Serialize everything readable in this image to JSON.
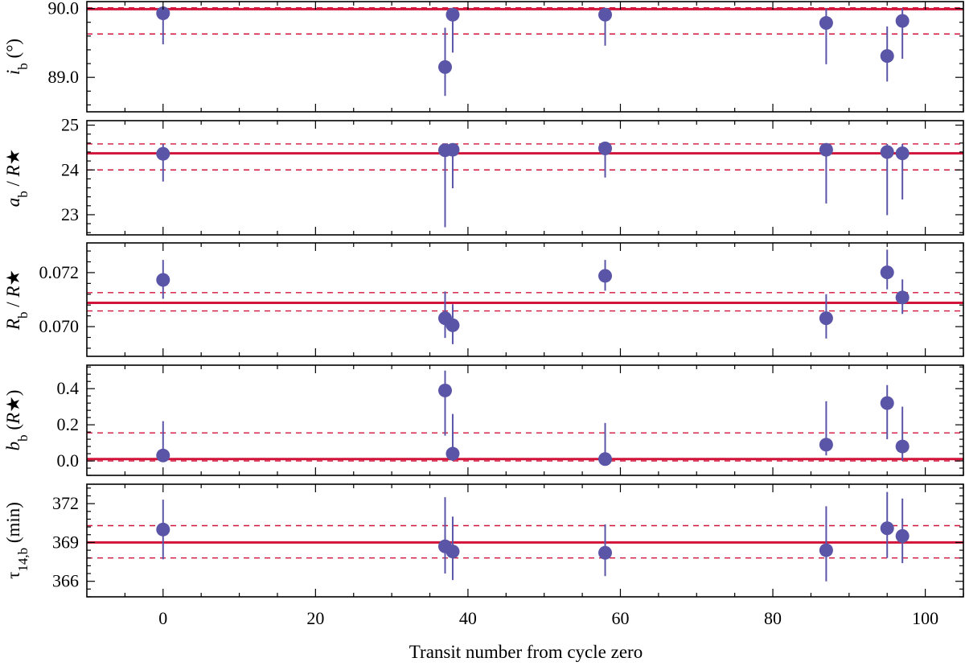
{
  "chart_data": {
    "type": "scatter",
    "xlabel": "Transit number from cycle zero",
    "xlim": [
      -10,
      105
    ],
    "xticks": [
      0,
      20,
      40,
      60,
      80,
      100
    ],
    "x": [
      0,
      37,
      38,
      58,
      87,
      95,
      97
    ],
    "panels": [
      {
        "id": "inclination",
        "ylabel_parts": [
          {
            "t": "i",
            "i": true
          },
          {
            "t": "b",
            "sub": true
          },
          {
            "t": " (°)"
          }
        ],
        "ylim": [
          88.5,
          90.1
        ],
        "yticks": [
          89.0,
          90.0
        ],
        "ytick_labels": [
          "89.0",
          "90.0"
        ],
        "reference": {
          "value": 89.99,
          "lower": 89.63,
          "upper": 90.01
        },
        "points": [
          {
            "x": 0,
            "y": 89.93,
            "lo": 89.48,
            "hi": 90.0
          },
          {
            "x": 37,
            "y": 89.15,
            "lo": 88.73,
            "hi": 89.72
          },
          {
            "x": 38,
            "y": 89.91,
            "lo": 89.36,
            "hi": 90.0
          },
          {
            "x": 58,
            "y": 89.91,
            "lo": 89.46,
            "hi": 90.0
          },
          {
            "x": 87,
            "y": 89.79,
            "lo": 89.19,
            "hi": 90.0
          },
          {
            "x": 95,
            "y": 89.31,
            "lo": 88.94,
            "hi": 89.74
          },
          {
            "x": 97,
            "y": 89.82,
            "lo": 89.27,
            "hi": 90.0
          }
        ]
      },
      {
        "id": "scaled-semi-major-axis",
        "ylabel_parts": [
          {
            "t": "a",
            "i": true
          },
          {
            "t": "b",
            "sub": true
          },
          {
            "t": " / "
          },
          {
            "t": "R",
            "i": true
          },
          {
            "t": "★"
          }
        ],
        "ylim": [
          22.55,
          25.1
        ],
        "yticks": [
          23,
          24,
          25
        ],
        "ytick_labels": [
          "23",
          "24",
          "25"
        ],
        "reference": {
          "value": 24.37,
          "lower": 24.0,
          "upper": 24.58
        },
        "points": [
          {
            "x": 0,
            "y": 24.36,
            "lo": 23.74,
            "hi": 24.58
          },
          {
            "x": 37,
            "y": 24.44,
            "lo": 22.72,
            "hi": 24.58
          },
          {
            "x": 38,
            "y": 24.45,
            "lo": 23.59,
            "hi": 24.58
          },
          {
            "x": 58,
            "y": 24.48,
            "lo": 23.83,
            "hi": 24.58
          },
          {
            "x": 87,
            "y": 24.45,
            "lo": 23.25,
            "hi": 24.58
          },
          {
            "x": 95,
            "y": 24.4,
            "lo": 22.99,
            "hi": 24.58
          },
          {
            "x": 97,
            "y": 24.37,
            "lo": 23.34,
            "hi": 24.58
          }
        ]
      },
      {
        "id": "radius-ratio",
        "ylabel_parts": [
          {
            "t": "R",
            "i": true
          },
          {
            "t": "b",
            "sub": true
          },
          {
            "t": " / "
          },
          {
            "t": "R",
            "i": true
          },
          {
            "t": "★"
          }
        ],
        "ylim": [
          0.0689,
          0.0731
        ],
        "yticks": [
          0.07,
          0.072
        ],
        "ytick_labels": [
          "0.070",
          "0.072"
        ],
        "reference": {
          "value": 0.07088,
          "lower": 0.07058,
          "upper": 0.07126
        },
        "points": [
          {
            "x": 0,
            "y": 0.07173,
            "lo": 0.07103,
            "hi": 0.07247
          },
          {
            "x": 37,
            "y": 0.07031,
            "lo": 0.06958,
            "hi": 0.0713
          },
          {
            "x": 38,
            "y": 0.07005,
            "lo": 0.06935,
            "hi": 0.07083
          },
          {
            "x": 58,
            "y": 0.07188,
            "lo": 0.07133,
            "hi": 0.07247
          },
          {
            "x": 87,
            "y": 0.07031,
            "lo": 0.06956,
            "hi": 0.0712
          },
          {
            "x": 95,
            "y": 0.07201,
            "lo": 0.07138,
            "hi": 0.07285
          },
          {
            "x": 97,
            "y": 0.07108,
            "lo": 0.07047,
            "hi": 0.07175
          }
        ]
      },
      {
        "id": "impact-parameter",
        "ylabel_parts": [
          {
            "t": "b",
            "i": true
          },
          {
            "t": "b",
            "sub": true
          },
          {
            "t": " ("
          },
          {
            "t": "R",
            "i": true
          },
          {
            "t": "★"
          },
          {
            "t": ")"
          }
        ],
        "ylim": [
          -0.08,
          0.53
        ],
        "yticks": [
          0.0,
          0.2,
          0.4
        ],
        "ytick_labels": [
          "0.0",
          "0.2",
          "0.4"
        ],
        "reference": {
          "value": 0.01,
          "lower": 0.0,
          "upper": 0.155
        },
        "points": [
          {
            "x": 0,
            "y": 0.03,
            "lo": 0.0,
            "hi": 0.22
          },
          {
            "x": 37,
            "y": 0.39,
            "lo": 0.14,
            "hi": 0.5
          },
          {
            "x": 38,
            "y": 0.04,
            "lo": 0.0,
            "hi": 0.26
          },
          {
            "x": 58,
            "y": 0.01,
            "lo": 0.0,
            "hi": 0.21
          },
          {
            "x": 87,
            "y": 0.09,
            "lo": 0.03,
            "hi": 0.33
          },
          {
            "x": 95,
            "y": 0.32,
            "lo": 0.12,
            "hi": 0.42
          },
          {
            "x": 97,
            "y": 0.08,
            "lo": 0.0,
            "hi": 0.3
          }
        ]
      },
      {
        "id": "transit-duration",
        "ylabel_parts": [
          {
            "t": "τ"
          },
          {
            "t": "14,b",
            "sub": true
          },
          {
            "t": " (min)"
          }
        ],
        "ylim": [
          364.8,
          373.5
        ],
        "yticks": [
          366,
          369,
          372
        ],
        "ytick_labels": [
          "366",
          "369",
          "372"
        ],
        "reference": {
          "value": 369.0,
          "lower": 367.8,
          "upper": 370.3
        },
        "points": [
          {
            "x": 0,
            "y": 370.0,
            "lo": 367.7,
            "hi": 372.3
          },
          {
            "x": 37,
            "y": 368.7,
            "lo": 366.6,
            "hi": 372.5
          },
          {
            "x": 38,
            "y": 368.3,
            "lo": 366.1,
            "hi": 371.0
          },
          {
            "x": 58,
            "y": 368.2,
            "lo": 366.4,
            "hi": 370.4
          },
          {
            "x": 87,
            "y": 368.4,
            "lo": 366.0,
            "hi": 371.8
          },
          {
            "x": 95,
            "y": 370.1,
            "lo": 367.8,
            "hi": 372.9
          },
          {
            "x": 97,
            "y": 369.5,
            "lo": 367.4,
            "hi": 372.4
          }
        ]
      }
    ]
  }
}
